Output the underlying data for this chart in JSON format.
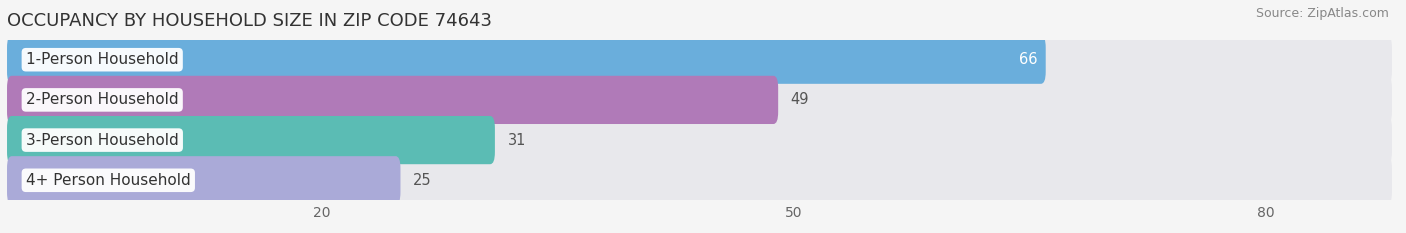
{
  "title": "OCCUPANCY BY HOUSEHOLD SIZE IN ZIP CODE 74643",
  "source": "Source: ZipAtlas.com",
  "categories": [
    "1-Person Household",
    "2-Person Household",
    "3-Person Household",
    "4+ Person Household"
  ],
  "values": [
    66,
    49,
    31,
    25
  ],
  "bar_colors": [
    "#6aaedc",
    "#b07ab8",
    "#5bbcb4",
    "#aaaad8"
  ],
  "bar_label_colors": [
    "white",
    "black",
    "black",
    "black"
  ],
  "bg_bar_color": "#e8e8ec",
  "background_color": "#f5f5f5",
  "xlim_max": 88,
  "xticks": [
    20,
    50,
    80
  ],
  "title_fontsize": 13,
  "source_fontsize": 9,
  "label_fontsize": 11,
  "value_fontsize": 10.5,
  "tick_fontsize": 10
}
